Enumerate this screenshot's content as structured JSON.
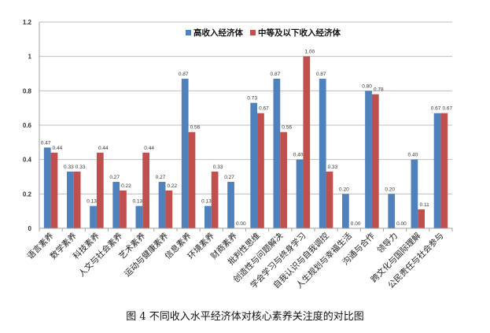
{
  "chart_data": {
    "type": "bar",
    "title": "",
    "caption": "图 4 不同收入水平经济体对核心素养关注度的对比图",
    "xlabel": "",
    "ylabel": "",
    "ylim": [
      0,
      1.2
    ],
    "yticks": [
      "0",
      "0.2",
      "0.4",
      "0.6",
      "0.8",
      "1",
      "1.2"
    ],
    "grid": true,
    "legend_position": "top",
    "categories": [
      "语言素养",
      "数学素养",
      "科技素养",
      "人文与社会素养",
      "艺术素养",
      "运动与健康素养",
      "信息素养",
      "环境素养",
      "财商素养",
      "批判性思维",
      "创造性与问题解决",
      "学会学习与终身学习",
      "自我认识与自我调控",
      "人生规划与幸福生活",
      "沟通与合作",
      "领导力",
      "跨文化与国际理解",
      "公民责任与社会参与"
    ],
    "series": [
      {
        "name": "高收入经济体",
        "color": "#4F81BD",
        "values": [
          0.47,
          0.33,
          0.13,
          0.27,
          0.13,
          0.27,
          0.87,
          0.13,
          0.27,
          0.73,
          0.87,
          0.4,
          0.87,
          0.2,
          0.8,
          0.2,
          0.4,
          0.67
        ]
      },
      {
        "name": "中等及以下收入经济体",
        "color": "#C0504D",
        "values": [
          0.44,
          0.33,
          0.44,
          0.22,
          0.44,
          0.22,
          0.56,
          0.33,
          0.0,
          0.67,
          0.56,
          1.0,
          0.33,
          0.0,
          0.78,
          0.0,
          0.11,
          0.67
        ]
      }
    ]
  }
}
